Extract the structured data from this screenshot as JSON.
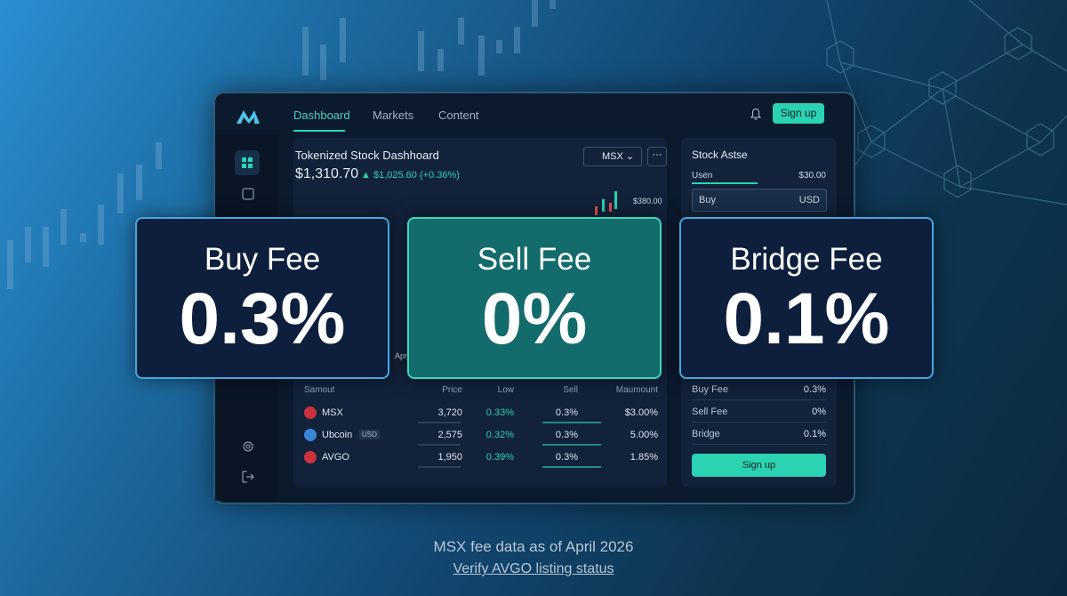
{
  "nav": {
    "tabs": [
      "Dashboard",
      "Markets",
      "Content"
    ],
    "signup": "Sign up"
  },
  "dashboard": {
    "title": "Tokenized Stock Dashhoard",
    "price": "$1,310.70",
    "change": "$1,025.60 (+0.36%)",
    "selector": "MSX",
    "axis_label": "$380.00",
    "x_label": "Apr"
  },
  "side_panel": {
    "title": "Stock Astse",
    "user_label": "Usen",
    "user_value": "$30.00",
    "input_label": "Buy",
    "input_unit": "USD",
    "fees": [
      [
        "Buy Fee",
        "0.3%"
      ],
      [
        "Sell Fee",
        "0%"
      ],
      [
        "Bridge",
        "0.1%"
      ]
    ],
    "button": "Sign up"
  },
  "table": {
    "headers": [
      "Samout",
      "Price",
      "Low",
      "Sell",
      "Maumount"
    ],
    "rows": [
      [
        "MSX",
        "3,720",
        "0.33%",
        "0.3%",
        "$3.00%"
      ],
      [
        "Ubcoin",
        "2,575",
        "0.32%",
        "0.3%",
        "5.00%"
      ],
      [
        "AVGO",
        "1,950",
        "0.39%",
        "0.3%",
        "1.85%"
      ]
    ],
    "tag": "USD"
  },
  "cards": [
    {
      "label": "Buy Fee",
      "value": "0.3%"
    },
    {
      "label": "Sell Fee",
      "value": "0%"
    },
    {
      "label": "Bridge Fee",
      "value": "0.1%"
    }
  ],
  "footer": {
    "note": "MSX fee data as of April 2026",
    "link": "Verify AVGO listing status"
  }
}
